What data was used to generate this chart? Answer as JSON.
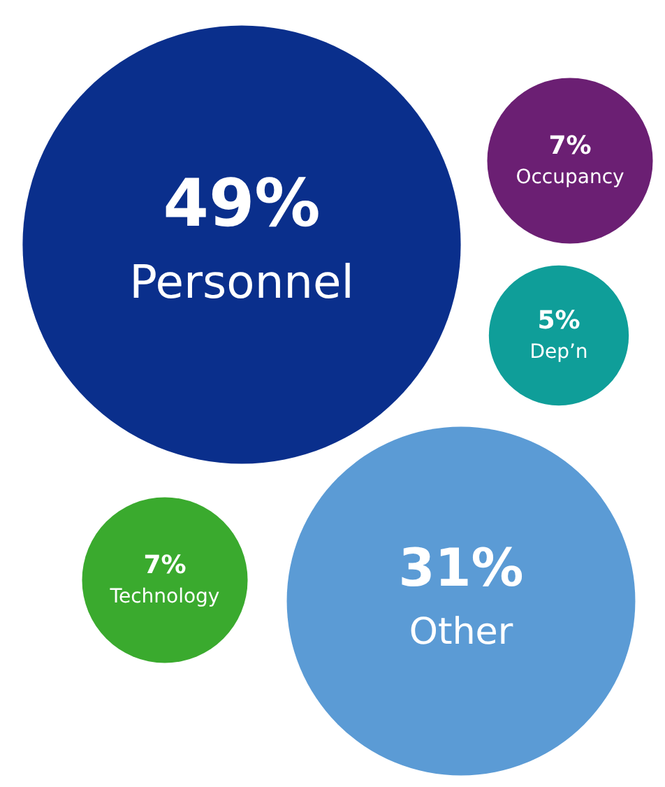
{
  "chart_data": {
    "type": "other",
    "categories": [
      "Personnel",
      "Occupancy",
      "Dep’n",
      "Technology",
      "Other"
    ],
    "values": [
      49,
      7,
      5,
      7,
      31
    ],
    "value_labels": [
      "49%",
      "7%",
      "5%",
      "7%",
      "31%"
    ],
    "colors": [
      "#0a2f8c",
      "#6b1f73",
      "#0f9e99",
      "#3aaa2e",
      "#5b9bd5"
    ]
  }
}
